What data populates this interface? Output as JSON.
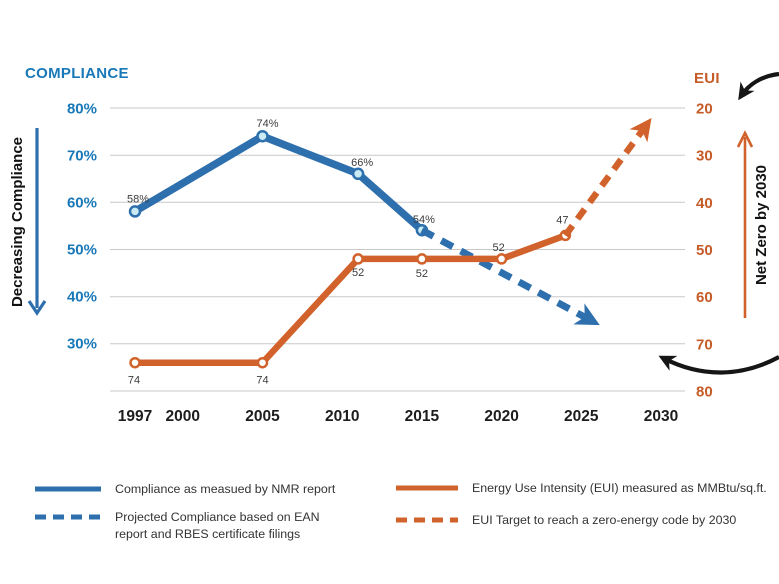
{
  "colors": {
    "blue_line": "#2e6fad",
    "blue_text": "#1878b8",
    "orange_line": "#d2622b",
    "orange_text": "#c65b27",
    "grid": "#c9c9c9"
  },
  "chart_data": {
    "type": "line",
    "title": "",
    "x_ticks": [
      "1997",
      "2000",
      "2005",
      "2010",
      "2015",
      "2020",
      "2025",
      "2030"
    ],
    "x_tick_years": [
      1997,
      2000,
      2005,
      2010,
      2015,
      2020,
      2025,
      2030
    ],
    "left_axis": {
      "title": "COMPLIANCE",
      "tick_labels": [
        "80%",
        "70%",
        "60%",
        "50%",
        "40%",
        "30%"
      ],
      "tick_values": [
        80,
        70,
        60,
        50,
        40,
        30
      ],
      "direction": "percent-decreases-downward"
    },
    "right_axis": {
      "title": "EUI",
      "tick_labels": [
        "20",
        "30",
        "40",
        "50",
        "60",
        "70",
        "80"
      ],
      "tick_values": [
        20,
        30,
        40,
        50,
        60,
        70,
        80
      ],
      "direction": "value-increases-downward"
    },
    "series": [
      {
        "name": "Compliance as measued by NMR report",
        "axis": "left",
        "style": "solid",
        "color_key": "blue",
        "years": [
          1997,
          2005,
          2011,
          2015
        ],
        "values": [
          58,
          74,
          66,
          54
        ],
        "labels": [
          "58%",
          "74%",
          "66%",
          "54%"
        ]
      },
      {
        "name": "Projected Compliance based on EAN report and RBES certificate filings",
        "axis": "left",
        "style": "dashed",
        "arrow_end": true,
        "color_key": "blue",
        "years": [
          2015,
          2025.5
        ],
        "values": [
          54,
          35
        ],
        "labels": []
      },
      {
        "name": "Energy Use Intensity (EUI) measured as MMBtu/sq.ft.",
        "axis": "right",
        "style": "solid",
        "color_key": "orange",
        "years": [
          1997,
          2005,
          2011,
          2015,
          2020,
          2024
        ],
        "values": [
          74,
          74,
          52,
          52,
          52,
          47
        ],
        "labels": [
          "74",
          "74",
          "52",
          "52",
          "52",
          "47"
        ]
      },
      {
        "name": "EUI Target to reach a zero-energy code by 2030",
        "axis": "right",
        "style": "dashed",
        "arrow_end": true,
        "color_key": "orange",
        "years": [
          2024,
          2029
        ],
        "values": [
          47,
          24
        ],
        "labels": []
      }
    ],
    "annotations": {
      "left_arrow_label": "Decreasing Compliance",
      "right_arrow_label": "Net Zero by 2030"
    },
    "grid": "horizontal-only",
    "legend_position": "bottom"
  },
  "legend": {
    "items": [
      {
        "swatch": "blue-solid",
        "line1": "Compliance as measued by NMR report",
        "line2": ""
      },
      {
        "swatch": "blue-dashed",
        "line1": "Projected Compliance based on EAN",
        "line2": "report and RBES certificate filings"
      },
      {
        "swatch": "orange-solid",
        "line1": "Energy Use Intensity (EUI) measured as MMBtu/sq.ft.",
        "line2": ""
      },
      {
        "swatch": "orange-dashed",
        "line1": "EUI Target to reach a zero-energy code by 2030",
        "line2": ""
      }
    ]
  }
}
